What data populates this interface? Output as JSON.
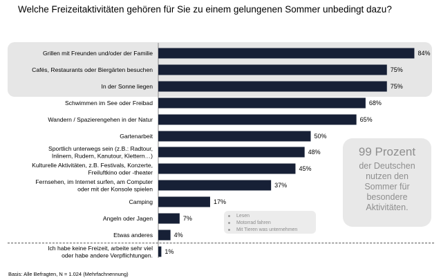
{
  "header": {
    "title": "Welche Freizeitaktivitäten gehören für Sie zu einem gelungenen Sommer unbedingt dazu?"
  },
  "colors": {
    "bar": "#172036",
    "highlight_box": "#e6e6e6",
    "stat_text": "#8e8e8e"
  },
  "chart_data": {
    "type": "bar",
    "orientation": "horizontal",
    "title": "Welche Freizeitaktivitäten gehören für Sie zu einem gelungenen Sommer unbedingt dazu?",
    "unit": "%",
    "xlim": [
      0,
      100
    ],
    "grid": false,
    "categories": [
      "Grillen mit Freunden und/oder der Familie",
      "Cafés, Restaurants oder Biergärten besuchen",
      "In der Sonne liegen",
      "Schwimmen im See oder Freibad",
      "Wandern / Spazierengehen in der Natur",
      "Gartenarbeit",
      "Sportlich unterwegs sein (z.B.: Radtour, Inlinern, Rudern, Kanutour, Klettern…)",
      "Kulturelle Aktivitäten, z.B. Festivals, Konzerte, Freiluftkino oder -theater",
      "Fernsehen, im Internet surfen, am Computer oder mit der Konsole spielen",
      "Camping",
      "Angeln oder Jagen",
      "Etwas anderes",
      "Ich habe keine Freizeit, arbeite sehr viel oder habe andere Verpflichtungen."
    ],
    "label_lines": [
      [
        "Grillen mit Freunden und/oder der Familie"
      ],
      [
        "Cafés, Restaurants oder Biergärten besuchen"
      ],
      [
        "In der Sonne liegen"
      ],
      [
        "Schwimmen im See oder Freibad"
      ],
      [
        "Wandern / Spazierengehen in der Natur"
      ],
      [
        "Gartenarbeit"
      ],
      [
        "Sportlich unterwegs sein (z.B.: Radtour,",
        "Inlinern, Rudern, Kanutour, Klettern…)"
      ],
      [
        "Kulturelle Aktivitäten, z.B. Festivals, Konzerte,",
        "Freiluftkino oder -theater"
      ],
      [
        "Fernsehen, im Internet surfen, am Computer",
        "oder mit der Konsole spielen"
      ],
      [
        "Camping"
      ],
      [
        "Angeln oder Jagen"
      ],
      [
        "Etwas anderes"
      ],
      [
        "Ich habe keine Freizeit, arbeite sehr viel",
        "oder habe andere Verpflichtungen."
      ]
    ],
    "values": [
      84,
      75,
      75,
      68,
      65,
      50,
      48,
      45,
      37,
      17,
      7,
      4,
      1
    ],
    "value_labels": [
      "84%",
      "75%",
      "75%",
      "68%",
      "65%",
      "50%",
      "48%",
      "45%",
      "37%",
      "17%",
      "7%",
      "4%",
      "1%"
    ]
  },
  "stat_callout": {
    "headline": "99 Prozent",
    "body": "der Deutschen\nnutzen den\nSommer für\nbesondere\nAktivitäten."
  },
  "other_note": {
    "items": [
      "Lesen",
      "Motorrad fahren",
      "Mit Tieren was unternehmen"
    ]
  },
  "footnote": "Basis: Alle Befragten, N = 1.024 (Mehrfachnennung)"
}
